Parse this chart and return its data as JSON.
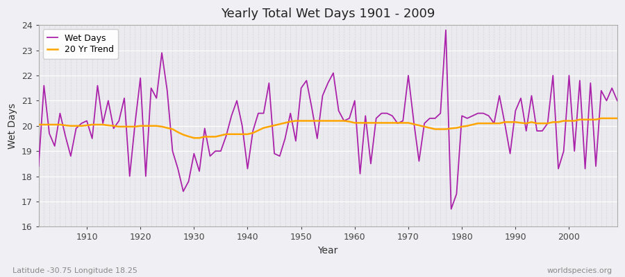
{
  "title": "Yearly Total Wet Days 1901 - 2009",
  "xlabel": "Year",
  "ylabel": "Wet Days",
  "subtitle_left": "Latitude -30.75 Longitude 18.25",
  "subtitle_right": "worldspecies.org",
  "xlim": [
    1901,
    2009
  ],
  "ylim": [
    16,
    24
  ],
  "yticks": [
    16,
    17,
    18,
    19,
    20,
    21,
    22,
    23,
    24
  ],
  "xticks": [
    1910,
    1920,
    1930,
    1940,
    1950,
    1960,
    1970,
    1980,
    1990,
    2000
  ],
  "wet_days_color": "#AA22AA",
  "trend_color": "#FFA500",
  "bg_color": "#F0F0F4",
  "plot_bg_color": "#EBEBEF",
  "legend_wet": "Wet Days",
  "legend_trend": "20 Yr Trend",
  "years": [
    1901,
    1902,
    1903,
    1904,
    1905,
    1906,
    1907,
    1908,
    1909,
    1910,
    1911,
    1912,
    1913,
    1914,
    1915,
    1916,
    1917,
    1918,
    1919,
    1920,
    1921,
    1922,
    1923,
    1924,
    1925,
    1926,
    1927,
    1928,
    1929,
    1930,
    1931,
    1932,
    1933,
    1934,
    1935,
    1936,
    1937,
    1938,
    1939,
    1940,
    1941,
    1942,
    1943,
    1944,
    1945,
    1946,
    1947,
    1948,
    1949,
    1950,
    1951,
    1952,
    1953,
    1954,
    1955,
    1956,
    1957,
    1958,
    1959,
    1960,
    1961,
    1962,
    1963,
    1964,
    1965,
    1966,
    1967,
    1968,
    1969,
    1970,
    1971,
    1972,
    1973,
    1974,
    1975,
    1976,
    1977,
    1978,
    1979,
    1980,
    1981,
    1982,
    1983,
    1984,
    1985,
    1986,
    1987,
    1988,
    1989,
    1990,
    1991,
    1992,
    1993,
    1994,
    1995,
    1996,
    1997,
    1998,
    1999,
    2000,
    2001,
    2002,
    2003,
    2004,
    2005,
    2006,
    2007,
    2008,
    2009
  ],
  "wet_days": [
    18.4,
    21.6,
    19.7,
    19.2,
    20.5,
    19.6,
    18.8,
    19.9,
    20.1,
    20.2,
    19.5,
    21.6,
    20.1,
    21.0,
    19.9,
    20.2,
    21.1,
    18.0,
    20.1,
    21.9,
    18.0,
    21.5,
    21.1,
    22.9,
    21.4,
    19.0,
    18.3,
    17.4,
    17.8,
    18.9,
    18.2,
    19.9,
    18.8,
    19.0,
    19.0,
    19.6,
    20.4,
    21.0,
    20.0,
    18.3,
    19.8,
    20.5,
    20.5,
    21.7,
    18.9,
    18.8,
    19.5,
    20.5,
    19.4,
    21.5,
    21.8,
    20.7,
    19.5,
    21.2,
    21.7,
    22.1,
    20.6,
    20.2,
    20.3,
    21.0,
    18.1,
    20.4,
    18.5,
    20.3,
    20.5,
    20.5,
    20.4,
    20.1,
    20.2,
    22.0,
    20.2,
    18.6,
    20.1,
    20.3,
    20.3,
    20.5,
    23.8,
    16.7,
    17.3,
    20.4,
    20.3,
    20.4,
    20.5,
    20.5,
    20.4,
    20.1,
    21.2,
    20.1,
    18.9,
    20.6,
    21.1,
    19.8,
    21.2,
    19.8,
    19.8,
    20.1,
    22.0,
    18.3,
    19.0,
    22.0,
    19.0,
    21.8,
    18.3,
    21.7,
    18.4,
    21.4,
    21.0,
    21.5,
    21.0
  ],
  "trend_vals": [
    20.05,
    20.05,
    20.05,
    20.05,
    20.05,
    20.02,
    20.0,
    20.0,
    20.0,
    20.02,
    20.05,
    20.05,
    20.05,
    20.02,
    20.0,
    19.97,
    19.97,
    19.97,
    19.97,
    20.0,
    20.0,
    20.0,
    20.0,
    19.97,
    19.92,
    19.87,
    19.75,
    19.65,
    19.58,
    19.52,
    19.52,
    19.57,
    19.57,
    19.57,
    19.62,
    19.67,
    19.67,
    19.67,
    19.67,
    19.67,
    19.72,
    19.82,
    19.92,
    19.97,
    20.02,
    20.07,
    20.12,
    20.17,
    20.2,
    20.2,
    20.2,
    20.2,
    20.2,
    20.2,
    20.2,
    20.2,
    20.2,
    20.2,
    20.17,
    20.12,
    20.12,
    20.12,
    20.12,
    20.12,
    20.12,
    20.12,
    20.12,
    20.12,
    20.12,
    20.12,
    20.07,
    20.02,
    19.97,
    19.92,
    19.87,
    19.87,
    19.87,
    19.9,
    19.92,
    19.97,
    20.0,
    20.05,
    20.1,
    20.1,
    20.1,
    20.1,
    20.1,
    20.15,
    20.15,
    20.15,
    20.12,
    20.1,
    20.15,
    20.1,
    20.1,
    20.1,
    20.15,
    20.15,
    20.2,
    20.2,
    20.2,
    20.25,
    20.25,
    20.25,
    20.25,
    20.3,
    20.3,
    20.3,
    20.3
  ]
}
